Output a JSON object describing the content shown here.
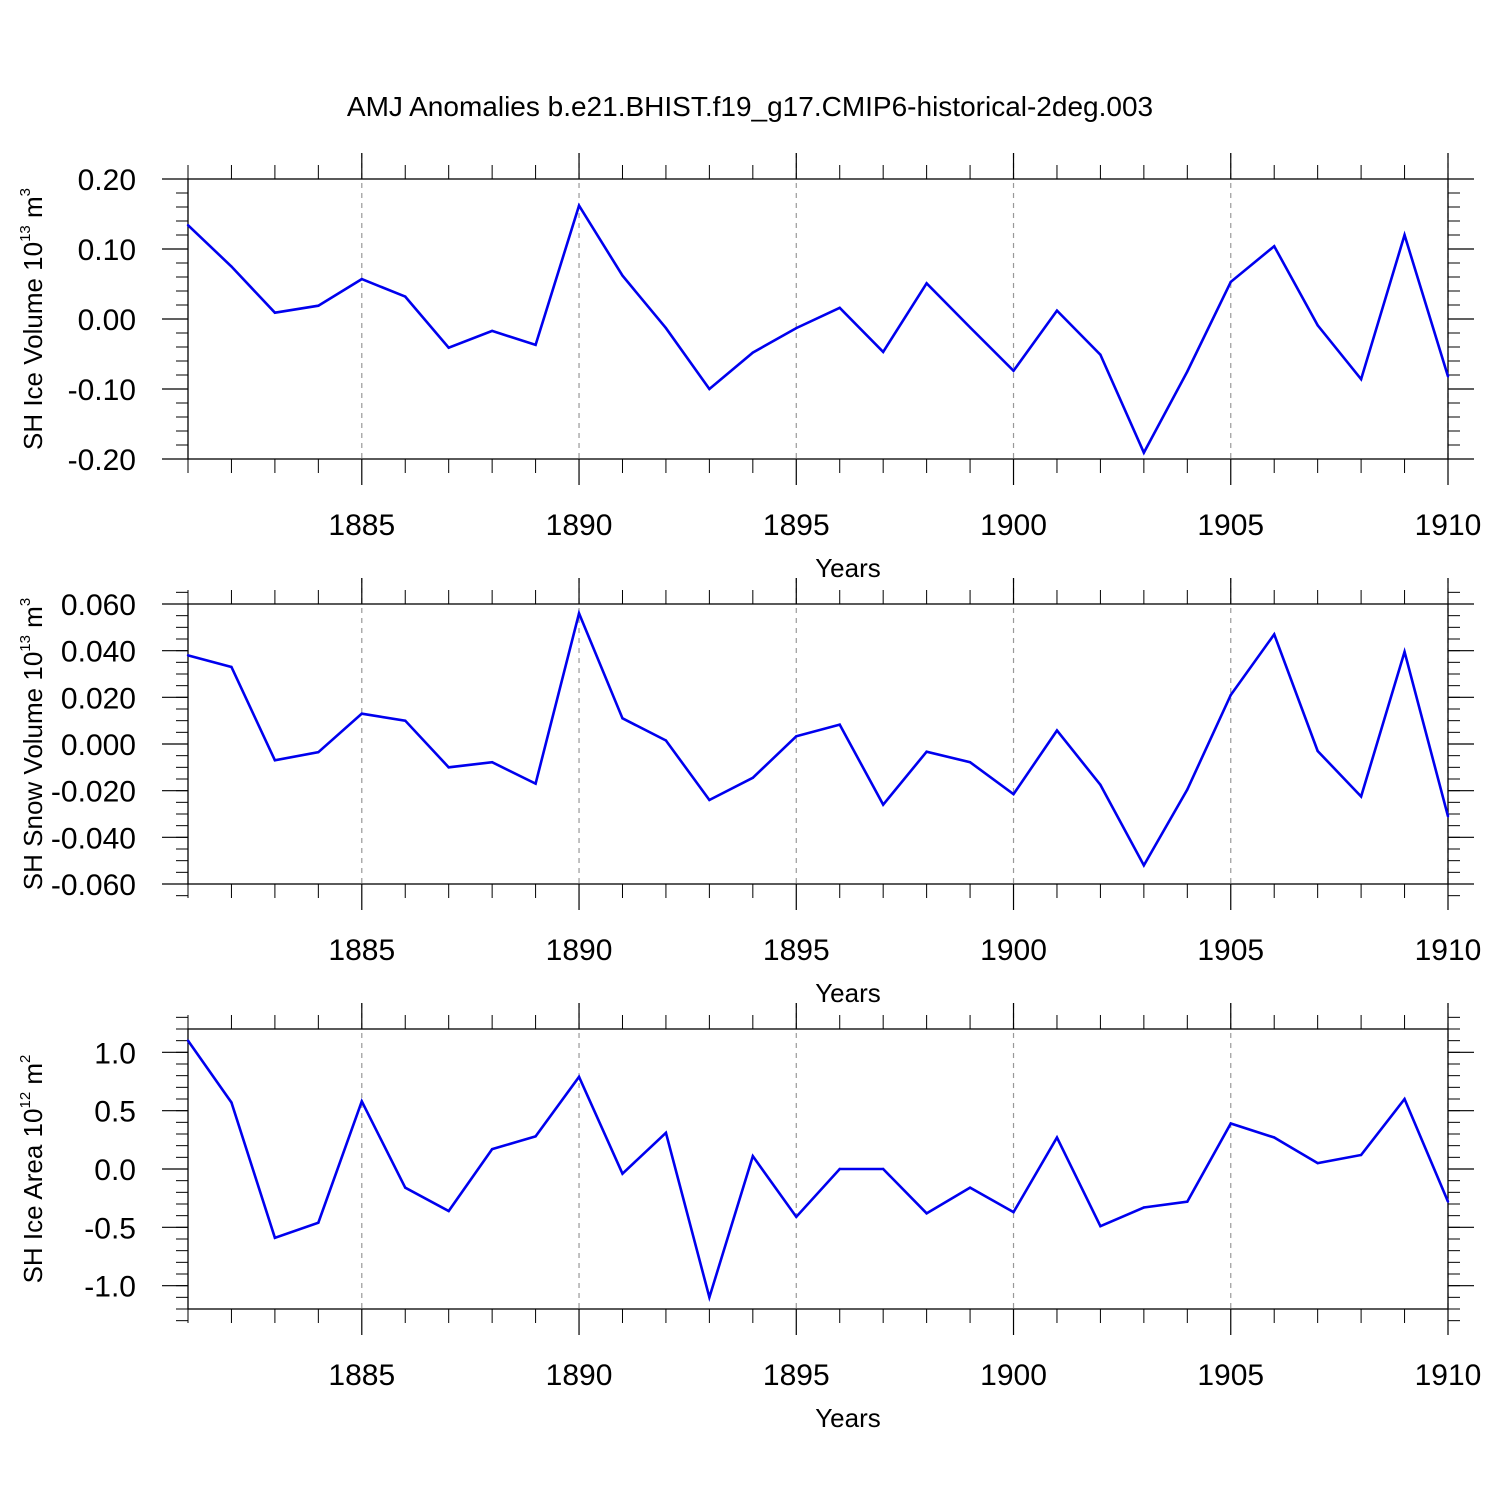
{
  "title": "AMJ Anomalies b.e21.BHIST.f19_g17.CMIP6-historical-2deg.003",
  "line_color": "#0000ee",
  "grid_color": "#999999",
  "chart_data": [
    {
      "type": "line",
      "ylabel_main": "SH Ice Volume 10",
      "ylabel_exp": "13",
      "ylabel_unit": " m",
      "ylabel_unit_exp": "3",
      "xlabel": "Years",
      "xlim": [
        1881,
        1910
      ],
      "ylim": [
        -0.2,
        0.2
      ],
      "xticks": [
        {
          "v": 1885,
          "label": "1885"
        },
        {
          "v": 1890,
          "label": "1890"
        },
        {
          "v": 1895,
          "label": "1895"
        },
        {
          "v": 1900,
          "label": "1900"
        },
        {
          "v": 1905,
          "label": "1905"
        },
        {
          "v": 1910,
          "label": "1910"
        }
      ],
      "yticks": [
        {
          "v": 0.2,
          "label": "0.20"
        },
        {
          "v": 0.1,
          "label": "0.10"
        },
        {
          "v": 0.0,
          "label": "0.00"
        },
        {
          "v": -0.1,
          "label": "-0.10"
        },
        {
          "v": -0.2,
          "label": "-0.20"
        }
      ],
      "yminor_step": 0.02,
      "x": [
        1881,
        1882,
        1883,
        1884,
        1885,
        1886,
        1887,
        1888,
        1889,
        1890,
        1891,
        1892,
        1893,
        1894,
        1895,
        1896,
        1897,
        1898,
        1899,
        1900,
        1901,
        1902,
        1903,
        1904,
        1905,
        1906,
        1907,
        1908,
        1909,
        1910
      ],
      "values": [
        0.134,
        0.075,
        0.009,
        0.019,
        0.057,
        0.032,
        -0.041,
        -0.017,
        -0.037,
        0.162,
        0.062,
        -0.013,
        -0.1,
        -0.048,
        -0.013,
        0.016,
        -0.047,
        0.051,
        -0.012,
        -0.074,
        0.012,
        -0.051,
        -0.191,
        -0.075,
        0.053,
        0.104,
        -0.009,
        -0.086,
        0.12,
        -0.082
      ]
    },
    {
      "type": "line",
      "ylabel_main": "SH Snow Volume 10",
      "ylabel_exp": "13",
      "ylabel_unit": " m",
      "ylabel_unit_exp": "3",
      "xlabel": "Years",
      "xlim": [
        1881,
        1910
      ],
      "ylim": [
        -0.06,
        0.06
      ],
      "xticks": [
        {
          "v": 1885,
          "label": "1885"
        },
        {
          "v": 1890,
          "label": "1890"
        },
        {
          "v": 1895,
          "label": "1895"
        },
        {
          "v": 1900,
          "label": "1900"
        },
        {
          "v": 1905,
          "label": "1905"
        },
        {
          "v": 1910,
          "label": "1910"
        }
      ],
      "yticks": [
        {
          "v": 0.06,
          "label": "0.060"
        },
        {
          "v": 0.04,
          "label": "0.040"
        },
        {
          "v": 0.02,
          "label": "0.020"
        },
        {
          "v": 0.0,
          "label": "0.000"
        },
        {
          "v": -0.02,
          "label": "-0.020"
        },
        {
          "v": -0.04,
          "label": "-0.040"
        },
        {
          "v": -0.06,
          "label": "-0.060"
        }
      ],
      "yminor_step": 0.005,
      "x": [
        1881,
        1882,
        1883,
        1884,
        1885,
        1886,
        1887,
        1888,
        1889,
        1890,
        1891,
        1892,
        1893,
        1894,
        1895,
        1896,
        1897,
        1898,
        1899,
        1900,
        1901,
        1902,
        1903,
        1904,
        1905,
        1906,
        1907,
        1908,
        1909,
        1910
      ],
      "values": [
        0.038,
        0.033,
        -0.007,
        -0.0035,
        0.013,
        0.01,
        -0.01,
        -0.0078,
        -0.017,
        0.056,
        0.011,
        0.0015,
        -0.024,
        -0.0145,
        0.0033,
        0.0083,
        -0.026,
        -0.0033,
        -0.0078,
        -0.0215,
        0.0058,
        -0.0175,
        -0.052,
        -0.0195,
        0.021,
        0.047,
        -0.003,
        -0.0225,
        0.0395,
        -0.031
      ]
    },
    {
      "type": "line",
      "ylabel_main": "SH Ice Area 10",
      "ylabel_exp": "12",
      "ylabel_unit": " m",
      "ylabel_unit_exp": "2",
      "xlabel": "Years",
      "xlim": [
        1881,
        1910
      ],
      "ylim": [
        -1.2,
        1.2
      ],
      "xticks": [
        {
          "v": 1885,
          "label": "1885"
        },
        {
          "v": 1890,
          "label": "1890"
        },
        {
          "v": 1895,
          "label": "1895"
        },
        {
          "v": 1900,
          "label": "1900"
        },
        {
          "v": 1905,
          "label": "1905"
        },
        {
          "v": 1910,
          "label": "1910"
        }
      ],
      "yticks": [
        {
          "v": 1.0,
          "label": "1.0"
        },
        {
          "v": 0.5,
          "label": "0.5"
        },
        {
          "v": 0.0,
          "label": "0.0"
        },
        {
          "v": -0.5,
          "label": "-0.5"
        },
        {
          "v": -1.0,
          "label": "-1.0"
        }
      ],
      "yminor_step": 0.1,
      "x": [
        1881,
        1882,
        1883,
        1884,
        1885,
        1886,
        1887,
        1888,
        1889,
        1890,
        1891,
        1892,
        1893,
        1894,
        1895,
        1896,
        1897,
        1898,
        1899,
        1900,
        1901,
        1902,
        1903,
        1904,
        1905,
        1906,
        1907,
        1908,
        1909,
        1910
      ],
      "values": [
        1.1,
        0.57,
        -0.59,
        -0.46,
        0.58,
        -0.16,
        -0.36,
        0.17,
        0.28,
        0.79,
        -0.04,
        0.31,
        -1.1,
        0.11,
        -0.41,
        0.0,
        0.0,
        -0.38,
        -0.16,
        -0.37,
        0.27,
        -0.49,
        -0.33,
        -0.28,
        0.39,
        0.27,
        0.05,
        0.12,
        0.6,
        -0.28
      ]
    }
  ]
}
